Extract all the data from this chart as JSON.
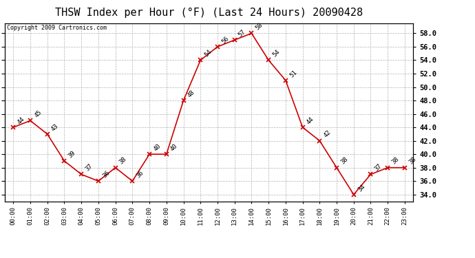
{
  "title": "THSW Index per Hour (°F) (Last 24 Hours) 20090428",
  "copyright": "Copyright 2009 Cartronics.com",
  "hours": [
    "00:00",
    "01:00",
    "02:00",
    "03:00",
    "04:00",
    "05:00",
    "06:00",
    "07:00",
    "08:00",
    "09:00",
    "10:00",
    "11:00",
    "12:00",
    "13:00",
    "14:00",
    "15:00",
    "16:00",
    "17:00",
    "18:00",
    "19:00",
    "20:00",
    "21:00",
    "22:00",
    "23:00"
  ],
  "values": [
    44,
    45,
    43,
    39,
    37,
    36,
    38,
    36,
    40,
    40,
    48,
    54,
    56,
    57,
    58,
    54,
    51,
    44,
    42,
    38,
    34,
    37,
    38,
    38
  ],
  "line_color": "#cc0000",
  "marker_color": "#cc0000",
  "grid_color": "#aaaaaa",
  "background_color": "#ffffff",
  "plot_bg_color": "#ffffff",
  "ylim": [
    33.0,
    59.5
  ],
  "yticks": [
    34.0,
    36.0,
    38.0,
    40.0,
    42.0,
    44.0,
    46.0,
    48.0,
    50.0,
    52.0,
    54.0,
    56.0,
    58.0
  ],
  "title_fontsize": 11,
  "label_fontsize": 6.5,
  "copyright_fontsize": 6,
  "tick_fontsize": 7.5,
  "xtick_fontsize": 6.5
}
